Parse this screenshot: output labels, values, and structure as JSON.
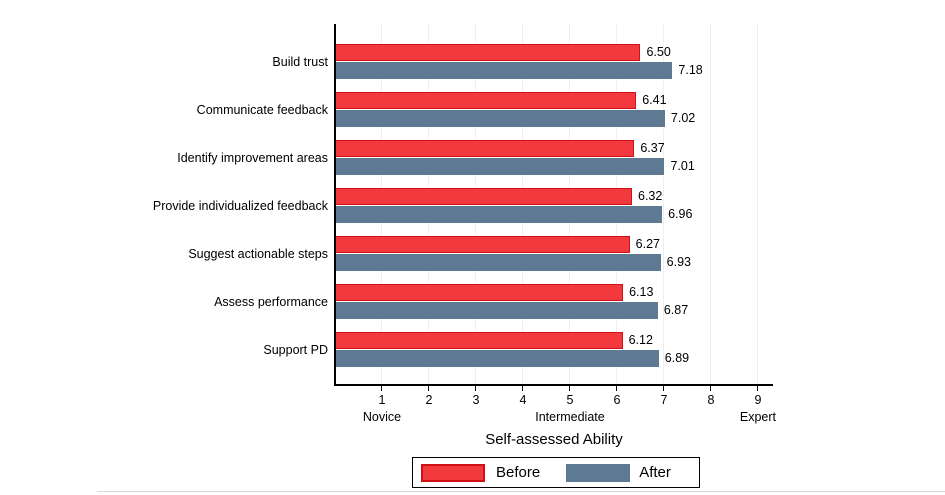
{
  "chart_data": {
    "type": "bar",
    "orientation": "horizontal",
    "title": "",
    "xlabel": "Self-assessed Ability",
    "categories": [
      "Build trust",
      "Communicate feedback",
      "Identify improvement areas",
      "Provide individualized feedback",
      "Suggest actionable steps",
      "Assess performance",
      "Support PD"
    ],
    "series": [
      {
        "name": "Before",
        "fill": "#f2393d",
        "border": "#d01015",
        "values": [
          6.5,
          6.41,
          6.37,
          6.32,
          6.27,
          6.13,
          6.12
        ],
        "labels": [
          "6.50",
          "6.41",
          "6.37",
          "6.32",
          "6.27",
          "6.13",
          "6.12"
        ]
      },
      {
        "name": "After",
        "fill": "#5e7a93",
        "border": "#5e7a93",
        "values": [
          7.18,
          7.02,
          7.01,
          6.96,
          6.93,
          6.87,
          6.89
        ],
        "labels": [
          "7.18",
          "7.02",
          "7.01",
          "6.96",
          "6.93",
          "6.87",
          "6.89"
        ]
      }
    ],
    "xlim": [
      0,
      9.32
    ],
    "xticks": [
      "1",
      "2",
      "3",
      "4",
      "5",
      "6",
      "7",
      "8",
      "9"
    ],
    "xtick_sublabels": [
      {
        "tick": 1,
        "label": "Novice"
      },
      {
        "tick": 5,
        "label": "Intermediate"
      },
      {
        "tick": 9,
        "label": "Expert"
      }
    ],
    "grid": true,
    "legend_position": "bottom-center",
    "colors": {
      "axis": "#000000",
      "gridline": "#f0eeee",
      "legend_border": "#000000",
      "separator": "#d9d9d9"
    }
  }
}
